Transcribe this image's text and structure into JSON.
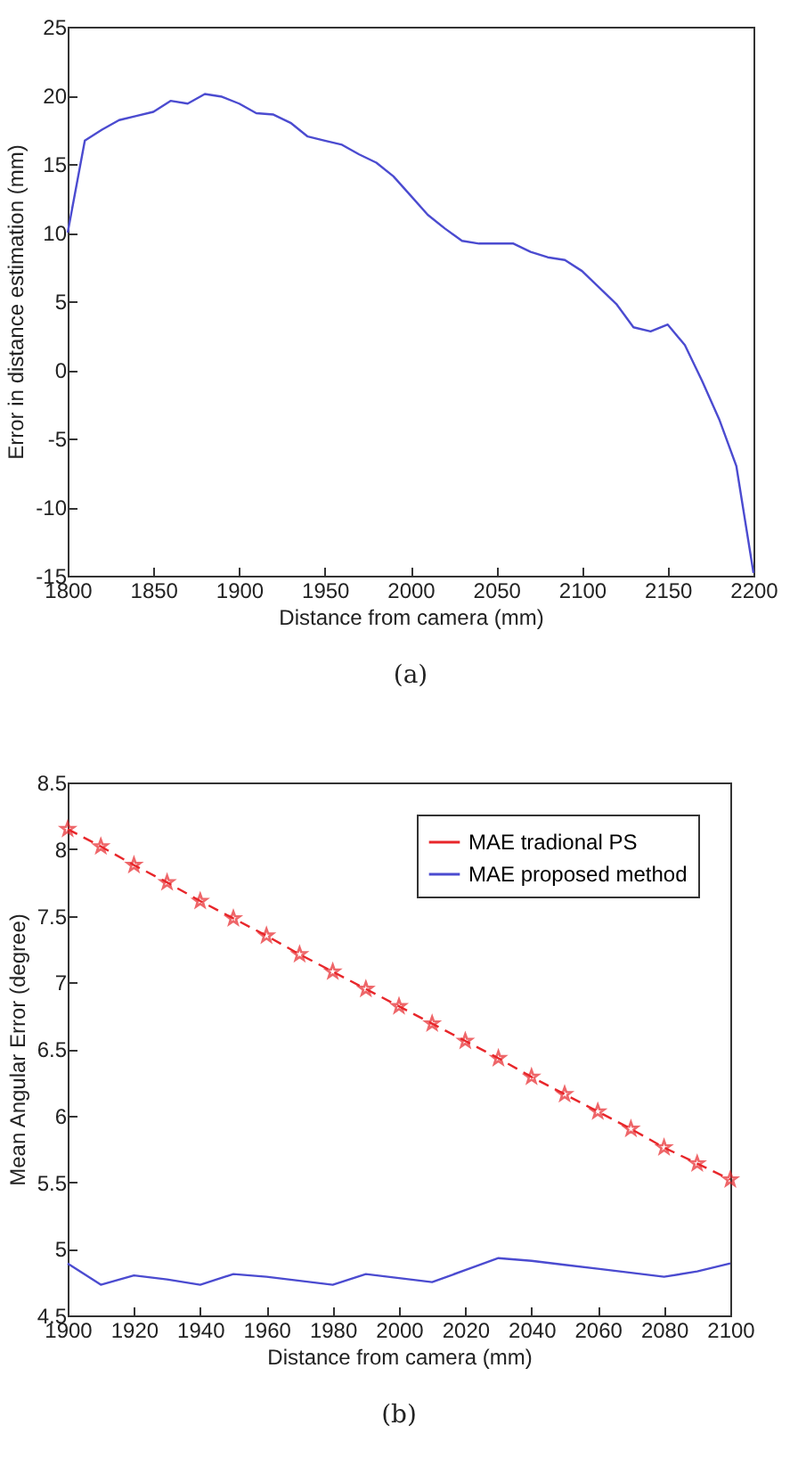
{
  "chart_data": [
    {
      "type": "line",
      "xlabel": "Distance from camera (mm)",
      "ylabel": "Error in distance estimation (mm)",
      "annotations": [
        "(a)"
      ],
      "x": [
        1800,
        1810,
        1820,
        1830,
        1840,
        1850,
        1860,
        1870,
        1880,
        1890,
        1900,
        1910,
        1920,
        1930,
        1940,
        1950,
        1960,
        1970,
        1980,
        1990,
        2000,
        2010,
        2020,
        2030,
        2040,
        2050,
        2060,
        2070,
        2080,
        2090,
        2100,
        2110,
        2120,
        2130,
        2140,
        2150,
        2160,
        2170,
        2180,
        2190,
        2200
      ],
      "series": [
        {
          "color": "#4b4bd0",
          "values": [
            10,
            16.7,
            17.5,
            18.2,
            18.5,
            18.8,
            19.6,
            19.4,
            20.1,
            19.9,
            19.4,
            18.7,
            18.6,
            18.0,
            17.0,
            16.7,
            16.4,
            15.7,
            15.1,
            14.1,
            12.7,
            11.3,
            10.3,
            9.4,
            9.2,
            9.2,
            9.2,
            8.6,
            8.2,
            8.0,
            7.2,
            6.0,
            4.8,
            3.1,
            2.8,
            3.3,
            1.8,
            -0.8,
            -3.6,
            -7,
            -14.8
          ]
        }
      ],
      "xlim": [
        1800,
        2200
      ],
      "xticks": [
        1800,
        1850,
        1900,
        1950,
        2000,
        2050,
        2100,
        2150,
        2200
      ],
      "ylim": [
        -15,
        25
      ],
      "yticks": [
        -15,
        -10,
        -5,
        0,
        5,
        10,
        15,
        20,
        25
      ],
      "grid": false,
      "legend": false
    },
    {
      "type": "line",
      "xlabel": "Distance from camera (mm)",
      "ylabel": "Mean Angular Error (degree)",
      "annotations": [
        "(b)"
      ],
      "x": [
        1900,
        1910,
        1920,
        1930,
        1940,
        1950,
        1960,
        1970,
        1980,
        1990,
        2000,
        2010,
        2020,
        2030,
        2040,
        2050,
        2060,
        2070,
        2080,
        2090,
        2100
      ],
      "series": [
        {
          "name": "MAE tradional PS",
          "color": "#e8262a",
          "marker": "star",
          "line_style": "dashed",
          "values": [
            8.15,
            8.02,
            7.88,
            7.75,
            7.61,
            7.48,
            7.35,
            7.21,
            7.08,
            6.95,
            6.82,
            6.69,
            6.56,
            6.43,
            6.29,
            6.16,
            6.03,
            5.9,
            5.76,
            5.64,
            5.52
          ]
        },
        {
          "name": "MAE proposed method",
          "color": "#4b4bd0",
          "marker": "none",
          "line_style": "solid",
          "values": [
            4.89,
            4.73,
            4.8,
            4.77,
            4.73,
            4.81,
            4.79,
            4.76,
            4.73,
            4.81,
            4.78,
            4.75,
            4.84,
            4.93,
            4.91,
            4.88,
            4.85,
            4.82,
            4.79,
            4.83,
            4.89
          ]
        }
      ],
      "xlim": [
        1900,
        2100
      ],
      "xticks": [
        1900,
        1920,
        1940,
        1960,
        1980,
        2000,
        2020,
        2040,
        2060,
        2080,
        2100
      ],
      "ylim": [
        4.5,
        8.5
      ],
      "yticks": [
        4.5,
        5,
        5.5,
        6,
        6.5,
        7,
        7.5,
        8,
        8.5
      ],
      "grid": false,
      "legend": "top right"
    }
  ]
}
